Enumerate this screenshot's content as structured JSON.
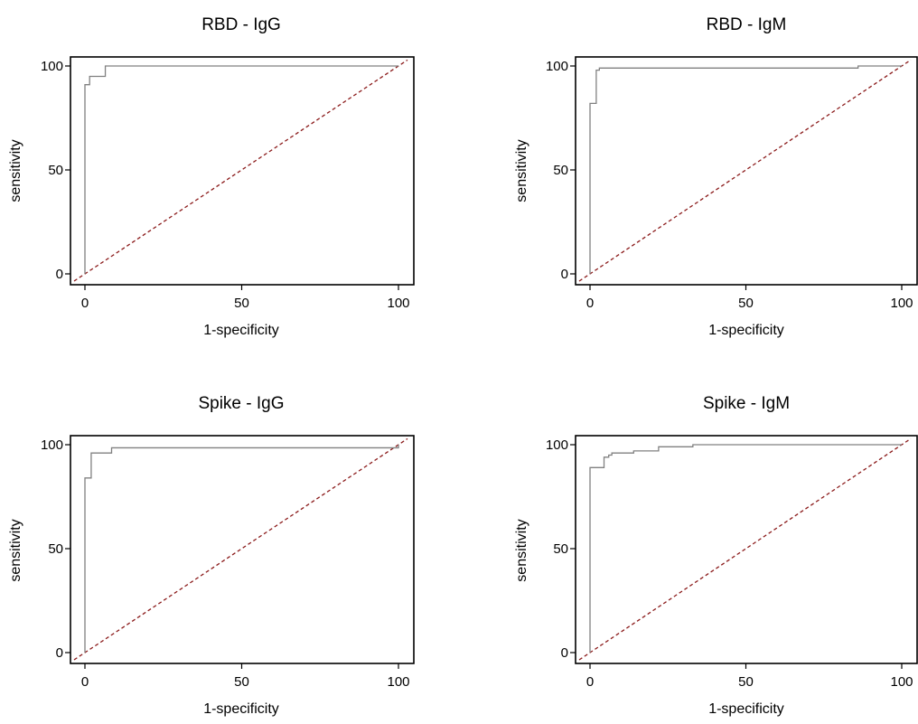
{
  "colors": {
    "roc_line": "#808080",
    "reference_line": "#8b1a1a",
    "frame": "#000000",
    "background": "#ffffff"
  },
  "chart_data": [
    {
      "type": "line",
      "title": "RBD - IgG",
      "xlabel": "1-specificity",
      "ylabel": "sensitivity",
      "xlim": [
        0,
        100
      ],
      "ylim": [
        0,
        100
      ],
      "xticks": [
        0,
        50,
        100
      ],
      "yticks": [
        0,
        50,
        100
      ],
      "grid": false,
      "legend": "none",
      "series": [
        {
          "x": [
            0,
            0,
            1.5,
            1.5,
            6.5,
            6.5,
            100
          ],
          "y": [
            0,
            91,
            91,
            95,
            95,
            100,
            100
          ]
        }
      ],
      "reference_line": {
        "x": [
          0,
          100
        ],
        "y": [
          0,
          100
        ]
      }
    },
    {
      "type": "line",
      "title": "RBD - IgM",
      "xlabel": "1-specificity",
      "ylabel": "sensitivity",
      "xlim": [
        0,
        100
      ],
      "ylim": [
        0,
        100
      ],
      "xticks": [
        0,
        50,
        100
      ],
      "yticks": [
        0,
        50,
        100
      ],
      "grid": false,
      "legend": "none",
      "series": [
        {
          "x": [
            0,
            0,
            2,
            2,
            3,
            3,
            86,
            86,
            100
          ],
          "y": [
            0,
            82,
            82,
            98,
            98,
            99,
            99,
            100,
            100
          ]
        }
      ],
      "reference_line": {
        "x": [
          0,
          100
        ],
        "y": [
          0,
          100
        ]
      }
    },
    {
      "type": "line",
      "title": "Spike - IgG",
      "xlabel": "1-specificity",
      "ylabel": "sensitivity",
      "xlim": [
        0,
        100
      ],
      "ylim": [
        0,
        100
      ],
      "xticks": [
        0,
        50,
        100
      ],
      "yticks": [
        0,
        50,
        100
      ],
      "grid": false,
      "legend": "none",
      "series": [
        {
          "x": [
            0,
            0,
            2,
            2,
            8.5,
            8.5,
            100,
            100
          ],
          "y": [
            0,
            84,
            84,
            96,
            96,
            98.5,
            98.5,
            100
          ]
        }
      ],
      "reference_line": {
        "x": [
          0,
          100
        ],
        "y": [
          0,
          100
        ]
      }
    },
    {
      "type": "line",
      "title": "Spike - IgM",
      "xlabel": "1-specificity",
      "ylabel": "sensitivity",
      "xlim": [
        0,
        100
      ],
      "ylim": [
        0,
        100
      ],
      "xticks": [
        0,
        50,
        100
      ],
      "yticks": [
        0,
        50,
        100
      ],
      "grid": false,
      "legend": "none",
      "series": [
        {
          "x": [
            0,
            0,
            4.5,
            4.5,
            6,
            6,
            7,
            7,
            14,
            14,
            22,
            22,
            33,
            33,
            100
          ],
          "y": [
            0,
            89,
            89,
            94,
            94,
            95,
            95,
            96,
            96,
            97,
            97,
            99,
            99,
            100,
            100
          ]
        }
      ],
      "reference_line": {
        "x": [
          0,
          100
        ],
        "y": [
          0,
          100
        ]
      }
    }
  ]
}
